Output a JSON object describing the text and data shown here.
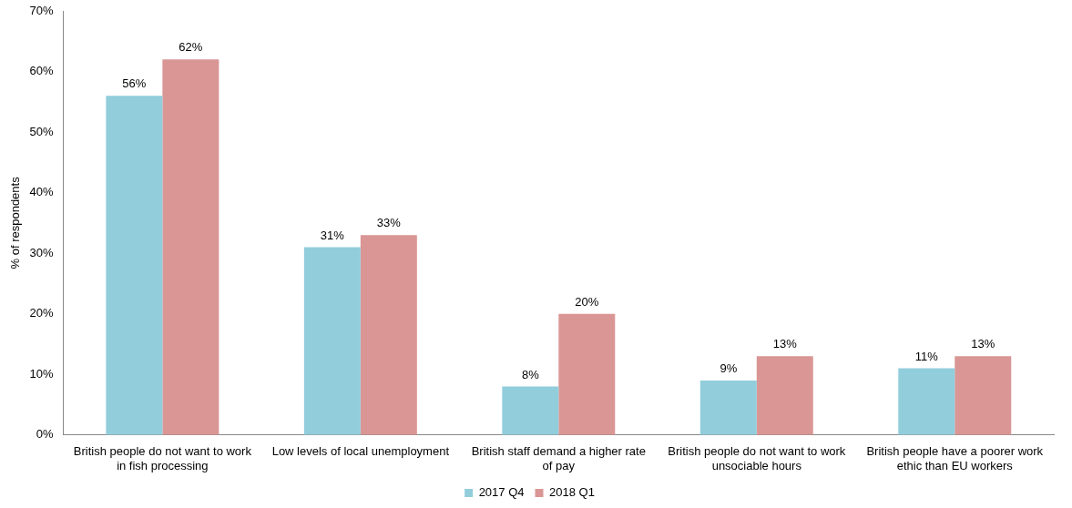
{
  "chart_data": {
    "type": "bar",
    "ylabel": "% of respondents",
    "categories": [
      "British people do not want to work in fish processing",
      "Low levels of local unemployment",
      "British staff demand a higher rate of pay",
      "British people do not want to work unsociable hours",
      "British people have a poorer work ethic than EU workers"
    ],
    "series": [
      {
        "name": "2017 Q4",
        "color": "#92cddc",
        "values": [
          56,
          31,
          8,
          9,
          11
        ],
        "value_labels": [
          "56%",
          "31%",
          "8%",
          "9%",
          "11%"
        ]
      },
      {
        "name": "2018 Q1",
        "color": "#d99694",
        "values": [
          62,
          33,
          20,
          13,
          13
        ],
        "value_labels": [
          "62%",
          "33%",
          "20%",
          "13%",
          "13%"
        ]
      }
    ],
    "ylim": [
      0,
      70
    ],
    "yticks": [
      {
        "value": 0,
        "label": "0%"
      },
      {
        "value": 10,
        "label": "10%"
      },
      {
        "value": 20,
        "label": "20%"
      },
      {
        "value": 30,
        "label": "30%"
      },
      {
        "value": 40,
        "label": "40%"
      },
      {
        "value": 50,
        "label": "50%"
      },
      {
        "value": 60,
        "label": "60%"
      },
      {
        "value": 70,
        "label": "70%"
      }
    ],
    "grid": false,
    "legend": "bottom"
  }
}
